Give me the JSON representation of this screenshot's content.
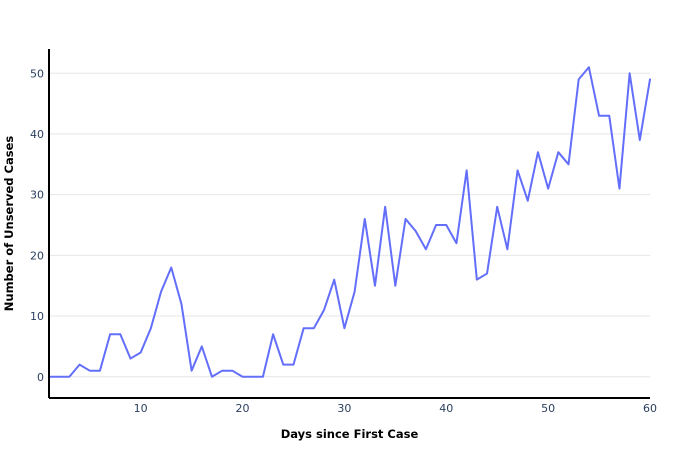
{
  "chart_data": {
    "type": "line",
    "title": "",
    "xlabel": "Days since First Case",
    "ylabel": "Number of Unserved Cases",
    "xlim": [
      1,
      60
    ],
    "ylim": [
      -3.5,
      54
    ],
    "x_ticks": [
      10,
      20,
      30,
      40,
      50,
      60
    ],
    "y_ticks": [
      0,
      10,
      20,
      30,
      40,
      50
    ],
    "grid": "horizontal",
    "legend": "none",
    "series": [
      {
        "color": "#636efa",
        "x": [
          1,
          2,
          3,
          4,
          5,
          6,
          7,
          8,
          9,
          10,
          11,
          12,
          13,
          14,
          15,
          16,
          17,
          18,
          19,
          20,
          21,
          22,
          23,
          24,
          25,
          26,
          27,
          28,
          29,
          30,
          31,
          32,
          33,
          34,
          35,
          36,
          37,
          38,
          39,
          40,
          41,
          42,
          43,
          44,
          45,
          46,
          47,
          48,
          49,
          50,
          51,
          52,
          53,
          54,
          55,
          56,
          57,
          58,
          59,
          60
        ],
        "y": [
          0,
          0,
          0,
          2,
          1,
          1,
          7,
          7,
          3,
          4,
          8,
          14,
          18,
          12,
          1,
          5,
          0,
          1,
          1,
          0,
          0,
          0,
          7,
          2,
          2,
          8,
          8,
          11,
          16,
          8,
          14,
          26,
          15,
          28,
          15,
          26,
          24,
          21,
          25,
          25,
          22,
          34,
          16,
          17,
          28,
          21,
          34,
          29,
          37,
          31,
          37,
          35,
          49,
          51,
          43,
          43,
          31,
          50,
          39,
          49
        ]
      }
    ]
  }
}
